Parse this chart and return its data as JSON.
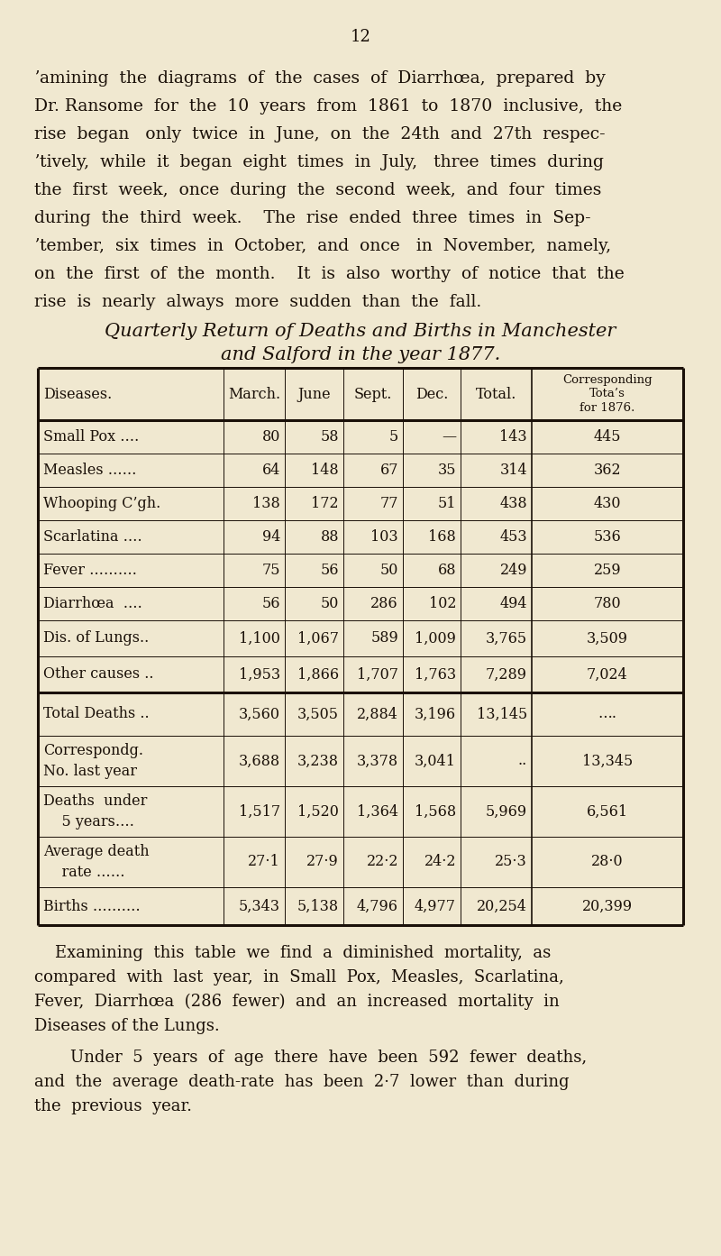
{
  "bg_color": "#f0e8d0",
  "page_number": "12",
  "lines_p1": [
    "ʼamining  the  diagrams  of  the  cases  of  Diarrhœa,  prepared  by",
    "Dr. Ransome  for  the  10  years  from  1861  to  1870  inclusive,  the",
    "rise  began   only  twice  in  June,  on  the  24th  and  27th  respec-",
    "ʼtively,  while  it  began  eight  times  in  July,   three  times  during",
    "the  first  week,  once  during  the  second  week,  and  four  times",
    "during  the  third  week.    The  rise  ended  three  times  in  Sep-",
    "ʼtember,  six  times  in  October,  and  once   in  November,  namely,",
    "on  the  first  of  the  month.    It  is  also  worthy  of  notice  that  the",
    "rise  is  nearly  always  more  sudden  than  the  fall."
  ],
  "table_title_line1": "Quarterly Return of Deaths and Births in Manchester",
  "table_title_line2": "and Salford in the year 1877.",
  "col_headers": [
    "Diseases.",
    "March.",
    "June",
    "Sept.",
    "Dec.",
    "Total.",
    "Corresponding\nTota’s\nfor 1876."
  ],
  "rows": [
    [
      "Small Pox ….",
      "80",
      "58",
      "5",
      "—",
      "143",
      "445"
    ],
    [
      "Measles ……",
      "64",
      "148",
      "67",
      "35",
      "314",
      "362"
    ],
    [
      "Whooping C’gh.",
      "138",
      "172",
      "77",
      "51",
      "438",
      "430"
    ],
    [
      "Scarlatina ….",
      "94",
      "88",
      "103",
      "168",
      "453",
      "536"
    ],
    [
      "Fever ……….",
      "75",
      "56",
      "50",
      "68",
      "249",
      "259"
    ],
    [
      "Diarrhœa  ….",
      "56",
      "50",
      "286",
      "102",
      "494",
      "780"
    ],
    [
      "Dis. of Lungs..",
      "1,100",
      "1,067",
      "589",
      "1,009",
      "3,765",
      "3,509"
    ],
    [
      "Other causes ..",
      "1,953",
      "1,866",
      "1,707",
      "1,763",
      "7,289",
      "7,024"
    ]
  ],
  "total_deaths_row": [
    "Total Deaths ..",
    "3,560",
    "3,505",
    "2,884",
    "3,196",
    "13,145",
    "…."
  ],
  "correspondg_label": "Correspondg.\nNo. last year",
  "correspondg_row": [
    "3,688",
    "3,238",
    "3,378",
    "3,041",
    "..",
    "13,345"
  ],
  "deaths_under_label": "Deaths  under\n    5 years….",
  "deaths_under_row": [
    "1,517",
    "1,520",
    "1,364",
    "1,568",
    "5,969",
    "6,561"
  ],
  "avg_death_label": "Average death\n    rate ……",
  "avg_death_row": [
    "27·1",
    "27·9",
    "22·2",
    "24·2",
    "25·3",
    "28·0"
  ],
  "births_label": "Births ……….",
  "births_row": [
    "5,343",
    "5,138",
    "4,796",
    "4,977",
    "20,254",
    "20,399"
  ],
  "lines_p2": [
    "    Examining  this  table  we  find  a  diminished  mortality,  as",
    "compared  with  last  year,  in  Small  Pox,  Measles,  Scarlatina,",
    "Fever,  Diarrhœa  (286  fewer)  and  an  increased  mortality  in",
    "Diseases of the Lungs."
  ],
  "lines_p3": [
    "    Under  5  years  of  age  there  have  been  592  fewer  deaths,",
    "and  the  average  death-rate  has  been  2·7  lower  than  during",
    "the  previous  year."
  ]
}
